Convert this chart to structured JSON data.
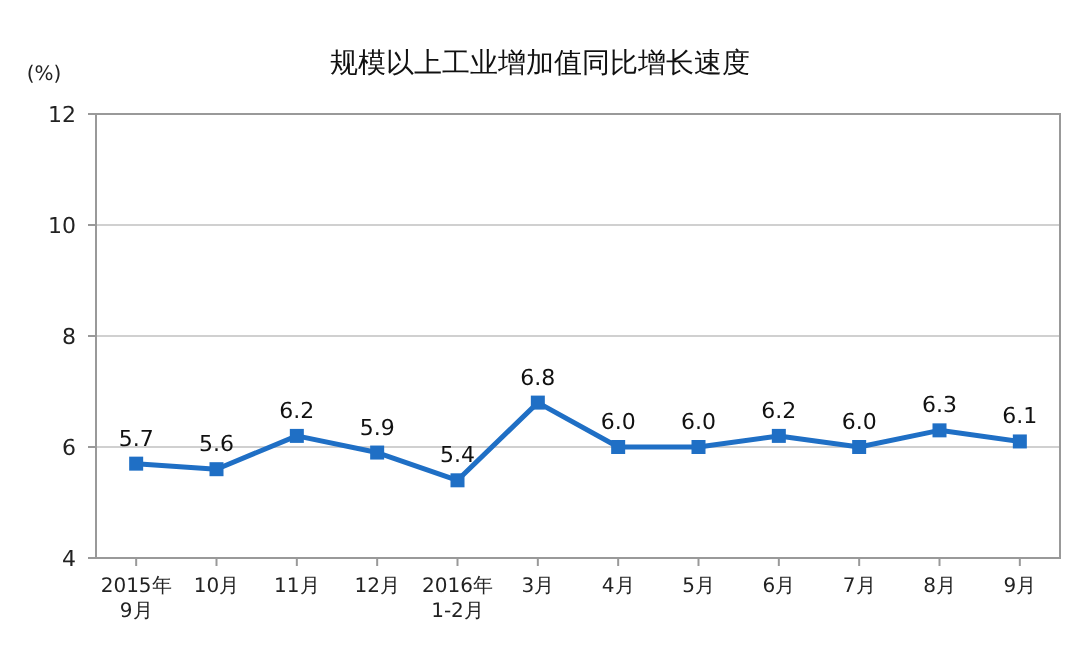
{
  "chart_data": {
    "type": "line",
    "title": "规模以上工业增加值同比增长速度",
    "ylabel": "(%)",
    "categories": [
      "2015年\n9月",
      "10月",
      "11月",
      "12月",
      "2016年\n1-2月",
      "3月",
      "4月",
      "5月",
      "6月",
      "7月",
      "8月",
      "9月"
    ],
    "series": [
      {
        "color": "#1f6fc5",
        "values": [
          5.7,
          5.6,
          6.2,
          5.9,
          5.4,
          6.8,
          6.0,
          6.0,
          6.2,
          6.0,
          6.3,
          6.1
        ]
      }
    ],
    "value_labels": [
      "5.7",
      "5.6",
      "6.2",
      "5.9",
      "5.4",
      "6.8",
      "6.0",
      "6.0",
      "6.2",
      "6.0",
      "6.3",
      "6.1"
    ],
    "ylim": [
      4,
      12
    ],
    "yticks": [
      4,
      6,
      8,
      10,
      12
    ],
    "grid": "y",
    "marker": "square",
    "line_style": "solid"
  }
}
